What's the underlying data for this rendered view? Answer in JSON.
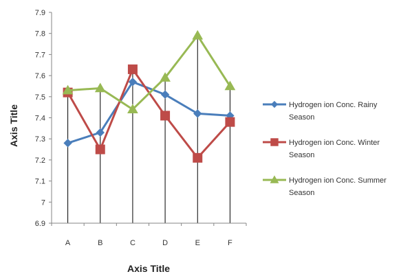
{
  "chart_data": {
    "type": "line",
    "categories": [
      "A",
      "B",
      "C",
      "D",
      "E",
      "F"
    ],
    "xlabel": "Axis Title",
    "ylabel": "Axis Title",
    "ylim": [
      6.9,
      7.9
    ],
    "yticks": [
      "6.9",
      "7",
      "7.1",
      "7.2",
      "7.3",
      "7.4",
      "7.5",
      "7.6",
      "7.7",
      "7.8",
      "7.9"
    ],
    "grid": false,
    "drop_lines": true,
    "legend_position": "right",
    "series": [
      {
        "name": "Hydrogen ion Conc. Rainy Season",
        "legend_lines": [
          "Hydrogen ion Conc. Rainy",
          "Season"
        ],
        "values": [
          7.28,
          7.33,
          7.57,
          7.51,
          7.42,
          7.41
        ],
        "color": "#4a7ebb",
        "marker": "diamond"
      },
      {
        "name": "Hydrogen ion Conc. Winter Season",
        "legend_lines": [
          "Hydrogen ion Conc. Winter",
          "Season"
        ],
        "values": [
          7.52,
          7.25,
          7.63,
          7.41,
          7.21,
          7.38
        ],
        "color": "#be4b48",
        "marker": "square"
      },
      {
        "name": "Hydrogen ion Conc. Summer Season",
        "legend_lines": [
          "Hydrogen ion Conc. Summer",
          "Season"
        ],
        "values": [
          7.53,
          7.54,
          7.44,
          7.59,
          7.79,
          7.55
        ],
        "color": "#98b954",
        "marker": "triangle"
      }
    ]
  }
}
